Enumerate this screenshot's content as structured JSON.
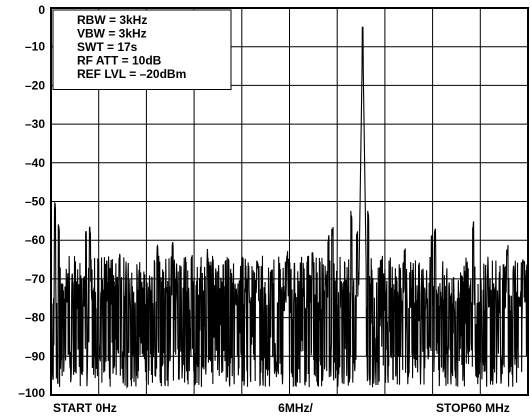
{
  "chart_data": {
    "type": "line",
    "title": "",
    "xlabel": "",
    "ylabel": "",
    "ylim": [
      -100,
      0
    ],
    "xlim": [
      0,
      60
    ],
    "x_unit": "MHz",
    "y_ticks": [
      0,
      -10,
      -20,
      -30,
      -40,
      -50,
      -60,
      -70,
      -80,
      -90,
      -100
    ],
    "y_tick_labels": [
      "0",
      "–10",
      "–20",
      "–30",
      "–40",
      "–50",
      "–60",
      "–70",
      "–80",
      "–90",
      "–100"
    ],
    "x_axis_labels": {
      "start": "START 0Hz",
      "center": "6MHz/",
      "stop": "STOP60 MHz"
    },
    "grid": true,
    "grid_divisions": {
      "x": 10,
      "y": 10
    },
    "settings": [
      "RBW = 3kHz",
      "VBW = 3kHz",
      "SWT = 17s",
      "RF ATT = 10dB",
      "REF LVL = –20dBm"
    ],
    "series": [
      {
        "peak": {
          "x": 39.2,
          "y": -5
        },
        "noise_floor_range": [
          -100,
          -72
        ],
        "spurs": [
          {
            "x": 0.5,
            "y": -53
          },
          {
            "x": 1.0,
            "y": -58
          },
          {
            "x": 4.4,
            "y": -60
          },
          {
            "x": 4.9,
            "y": -59
          },
          {
            "x": 8.6,
            "y": -66
          },
          {
            "x": 13.4,
            "y": -64
          },
          {
            "x": 15.3,
            "y": -62
          },
          {
            "x": 17.7,
            "y": -66
          },
          {
            "x": 19.7,
            "y": -65
          },
          {
            "x": 26.0,
            "y": -69
          },
          {
            "x": 29.7,
            "y": -65
          },
          {
            "x": 32.9,
            "y": -66
          },
          {
            "x": 34.9,
            "y": -61
          },
          {
            "x": 35.4,
            "y": -59
          },
          {
            "x": 37.8,
            "y": -55
          },
          {
            "x": 38.5,
            "y": -60
          },
          {
            "x": 39.9,
            "y": -55
          },
          {
            "x": 44.5,
            "y": -65
          },
          {
            "x": 47.9,
            "y": -60
          },
          {
            "x": 48.3,
            "y": -58
          },
          {
            "x": 53.1,
            "y": -58
          },
          {
            "x": 57.4,
            "y": -64
          },
          {
            "x": 59.4,
            "y": -66
          }
        ]
      }
    ]
  }
}
